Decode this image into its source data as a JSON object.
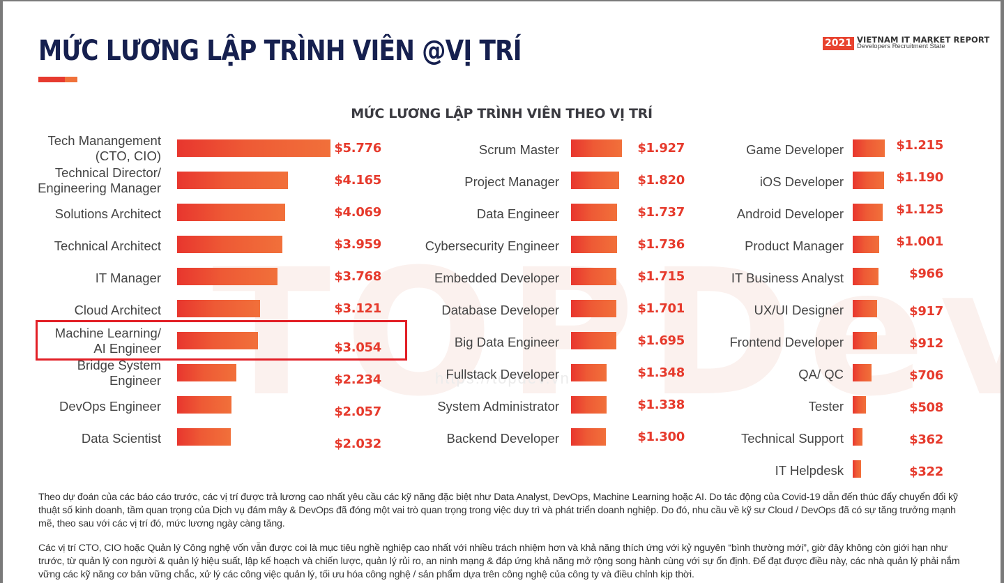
{
  "page": {
    "title": "MỨC LƯƠNG LẬP TRÌNH VIÊN @VỊ TRÍ",
    "brand": {
      "year": "2021",
      "line1": "VIETNAM IT MARKET REPORT",
      "line2": "Developers Recruitment State"
    },
    "watermark": "TOPDev",
    "watermark_url": "https://topdev.vn",
    "colors": {
      "title": "#16204f",
      "bar_start": "#e8362e",
      "bar_end": "#f1703a",
      "value_text": "#e63a2c",
      "highlight_box": "#e21f26"
    },
    "highlighted_item": "Machine Learning/ AI Engineer"
  },
  "chart_data": {
    "type": "bar",
    "orientation": "horizontal",
    "title": "MỨC LƯƠNG LẬP TRÌNH VIÊN THEO VỊ TRÍ",
    "xlabel": "",
    "ylabel": "",
    "unit": "USD",
    "grid": false,
    "legend": null,
    "columns": [
      {
        "items": [
          {
            "label": "Tech Manangement\n(CTO, CIO)",
            "label_lines": [
              "Tech Manangement",
              "(CTO, CIO)"
            ],
            "value": 5776,
            "display": "$5.776"
          },
          {
            "label": "Technical Director/ Engineering Manager",
            "label_lines": [
              "Technical Director/",
              "Engineering Manager"
            ],
            "value": 4165,
            "display": "$4.165"
          },
          {
            "label": "Solutions Architect",
            "label_lines": [
              "Solutions Architect"
            ],
            "value": 4069,
            "display": "$4.069"
          },
          {
            "label": "Technical Architect",
            "label_lines": [
              "Technical Architect"
            ],
            "value": 3959,
            "display": "$3.959"
          },
          {
            "label": "IT Manager",
            "label_lines": [
              "IT Manager"
            ],
            "value": 3768,
            "display": "$3.768"
          },
          {
            "label": "Cloud Architect",
            "label_lines": [
              "Cloud Architect"
            ],
            "value": 3121,
            "display": "$3.121"
          },
          {
            "label": "Machine Learning/ AI Engineer",
            "label_lines": [
              "Machine Learning/",
              "AI Engineer"
            ],
            "value": 3054,
            "display": "$3.054"
          },
          {
            "label": "Bridge System Engineer",
            "label_lines": [
              "Bridge System",
              "Engineer"
            ],
            "value": 2234,
            "display": "$2.234"
          },
          {
            "label": "DevOps Engineer",
            "label_lines": [
              "DevOps Engineer"
            ],
            "value": 2057,
            "display": "$2.057"
          },
          {
            "label": "Data Scientist",
            "label_lines": [
              "Data Scientist"
            ],
            "value": 2032,
            "display": "$2.032"
          }
        ]
      },
      {
        "items": [
          {
            "label": "Scrum Master",
            "label_lines": [
              "Scrum Master"
            ],
            "value": 1927,
            "display": "$1.927"
          },
          {
            "label": "Project Manager",
            "label_lines": [
              "Project Manager"
            ],
            "value": 1820,
            "display": "$1.820"
          },
          {
            "label": "Data Engineer",
            "label_lines": [
              "Data Engineer"
            ],
            "value": 1737,
            "display": "$1.737"
          },
          {
            "label": "Cybersecurity Engineer",
            "label_lines": [
              "Cybersecurity Engineer"
            ],
            "value": 1736,
            "display": "$1.736"
          },
          {
            "label": "Embedded Developer",
            "label_lines": [
              "Embedded Developer"
            ],
            "value": 1715,
            "display": "$1.715"
          },
          {
            "label": "Database Developer",
            "label_lines": [
              "Database Developer"
            ],
            "value": 1701,
            "display": "$1.701"
          },
          {
            "label": "Big Data Engineer",
            "label_lines": [
              "Big Data Engineer"
            ],
            "value": 1695,
            "display": "$1.695"
          },
          {
            "label": "Fullstack Developer",
            "label_lines": [
              "Fullstack Developer"
            ],
            "value": 1348,
            "display": "$1.348"
          },
          {
            "label": "System Administrator",
            "label_lines": [
              "System Administrator"
            ],
            "value": 1338,
            "display": "$1.338"
          },
          {
            "label": "Backend Developer",
            "label_lines": [
              "Backend Developer"
            ],
            "value": 1300,
            "display": "$1.300"
          }
        ]
      },
      {
        "items": [
          {
            "label": "Game Developer",
            "label_lines": [
              "Game Developer"
            ],
            "value": 1215,
            "display": "$1.215"
          },
          {
            "label": "iOS Developer",
            "label_lines": [
              "iOS Developer"
            ],
            "value": 1190,
            "display": "$1.190"
          },
          {
            "label": "Android Developer",
            "label_lines": [
              "Android Developer"
            ],
            "value": 1125,
            "display": "$1.125"
          },
          {
            "label": "Product Manager",
            "label_lines": [
              "Product Manager"
            ],
            "value": 1001,
            "display": "$1.001"
          },
          {
            "label": "IT Business Analyst",
            "label_lines": [
              "IT Business Analyst"
            ],
            "value": 966,
            "display": "$966"
          },
          {
            "label": "UX/UI Designer",
            "label_lines": [
              "UX/UI Designer"
            ],
            "value": 917,
            "display": "$917"
          },
          {
            "label": "Frontend Developer",
            "label_lines": [
              "Frontend Developer"
            ],
            "value": 912,
            "display": "$912"
          },
          {
            "label": "QA/ QC",
            "label_lines": [
              "QA/ QC"
            ],
            "value": 706,
            "display": "$706"
          },
          {
            "label": "Tester",
            "label_lines": [
              "Tester"
            ],
            "value": 508,
            "display": "$508"
          },
          {
            "label": "Technical Support",
            "label_lines": [
              "Technical Support"
            ],
            "value": 362,
            "display": "$362"
          },
          {
            "label": "IT Helpdesk",
            "label_lines": [
              "IT Helpdesk"
            ],
            "value": 322,
            "display": "$322"
          }
        ]
      }
    ]
  },
  "paragraphs": [
    "Theo dự đoán của các báo cáo trước, các vị trí được trả lương cao nhất yêu cầu các kỹ năng đặc biệt như Data Analyst, DevOps, Machine Learning hoặc AI. Do tác động của Covid-19 dẫn đến thúc đẩy chuyển đổi kỹ thuật số kinh doanh, tầm quan trọng của Dịch vụ đám mây & DevOps đã đóng một vai trò quan trọng trong việc duy trì và phát triển doanh nghiệp. Do đó, nhu cầu về kỹ sư Cloud / DevOps đã có sự tăng trưởng mạnh mẽ, theo sau với các vị trí đó, mức lương ngày càng tăng.",
    "Các vị trí CTO, CIO hoặc Quản lý Công nghệ vốn vẫn được coi là mục tiêu nghề nghiệp cao nhất với nhiều trách nhiệm hơn và khả năng thích ứng với kỷ nguyên “bình thường mới”, giờ đây không còn giới hạn như trước, từ quản lý con người & quản lý hiệu suất, lập kế hoạch và chiến lược, quản lý rủi ro, an ninh mạng & đáp ứng khả năng mở rộng song hành cùng với sự ổn định. Để đạt được điều này, các nhà quản lý phải nắm vững các kỹ năng cơ bản vững chắc, xử lý các công việc quản lý, tối ưu hóa công nghệ / sản phẩm dựa trên công nghệ của công ty và điều chỉnh kịp thời."
  ]
}
